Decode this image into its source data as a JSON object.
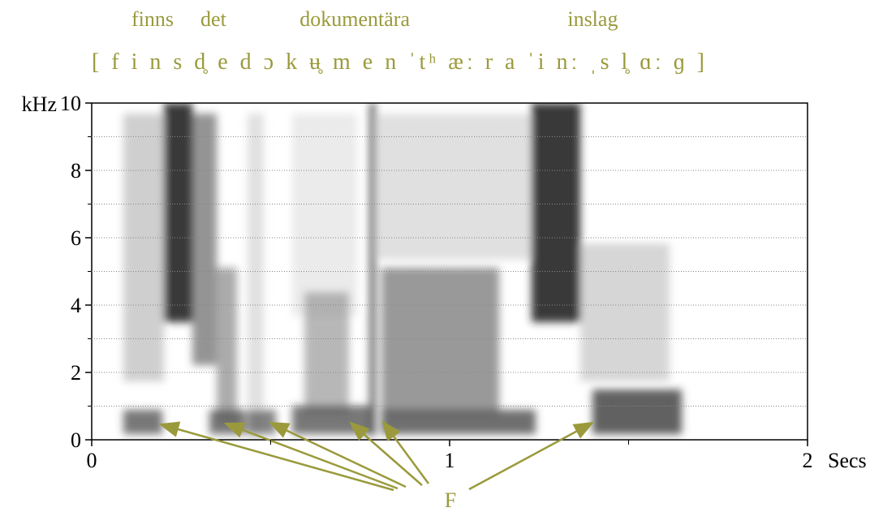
{
  "chart_data": {
    "type": "spectrogram",
    "words": [
      {
        "text": "finns",
        "x": 0.17
      },
      {
        "text": "det",
        "x": 0.34
      },
      {
        "text": "dokumentära",
        "x": 0.735
      },
      {
        "text": "inslag",
        "x": 1.4
      }
    ],
    "transcription": "[ f i n s d̥ e d ɔ k ʉ̥ m e n ˈtʰ æː r a ˈi nː ˌs l̥ ɑː ɡ ]",
    "annotation": "F",
    "xlabel": "Secs",
    "ylabel": "kHz",
    "xlim": [
      0,
      2
    ],
    "ylim": [
      0,
      10
    ],
    "xticks": [
      0,
      1,
      2
    ],
    "yticks": [
      0,
      2,
      4,
      6,
      8,
      10
    ],
    "minor_xticks": [
      0.5,
      1.5
    ],
    "minor_yticks": [
      1,
      3,
      5,
      7,
      9
    ],
    "grid": true,
    "text_color": "#9a9a3c"
  }
}
